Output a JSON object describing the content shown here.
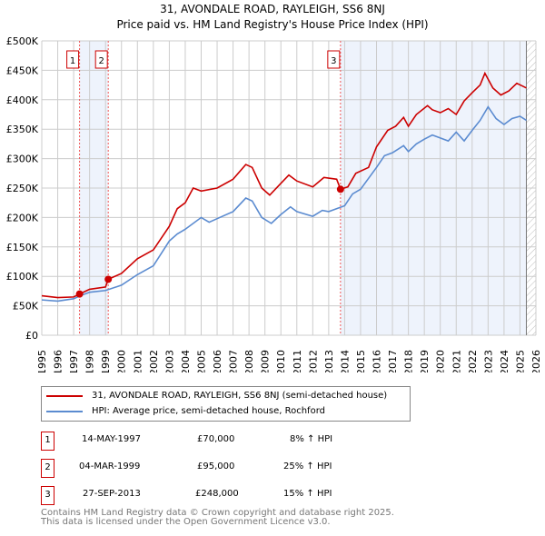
{
  "chart_data": {
    "type": "line",
    "title": "31, AVONDALE ROAD, RAYLEIGH, SS6 8NJ",
    "subtitle": "Price paid vs. HM Land Registry's House Price Index (HPI)",
    "xlim": [
      1995,
      2026
    ],
    "ylim": [
      0,
      500000
    ],
    "x_ticks": [
      "1995",
      "1996",
      "1997",
      "1998",
      "1999",
      "2000",
      "2001",
      "2002",
      "2003",
      "2004",
      "2005",
      "2006",
      "2007",
      "2008",
      "2009",
      "2010",
      "2011",
      "2012",
      "2013",
      "2014",
      "2015",
      "2016",
      "2017",
      "2018",
      "2019",
      "2020",
      "2021",
      "2022",
      "2023",
      "2024",
      "2025",
      "2026"
    ],
    "y_ticks": [
      {
        "v": 0,
        "label": "£0"
      },
      {
        "v": 50000,
        "label": "£50K"
      },
      {
        "v": 100000,
        "label": "£100K"
      },
      {
        "v": 150000,
        "label": "£150K"
      },
      {
        "v": 200000,
        "label": "£200K"
      },
      {
        "v": 250000,
        "label": "£250K"
      },
      {
        "v": 300000,
        "label": "£300K"
      },
      {
        "v": 350000,
        "label": "£350K"
      },
      {
        "v": 400000,
        "label": "£400K"
      },
      {
        "v": 450000,
        "label": "£450K"
      },
      {
        "v": 500000,
        "label": "£500K"
      }
    ],
    "grid": true,
    "series": [
      {
        "name": "31, AVONDALE ROAD, RAYLEIGH, SS6 8NJ (semi-detached house)",
        "color": "#cc0000",
        "x": [
          1995,
          1996,
          1997,
          1997.37,
          1998,
          1999,
          1999.17,
          2000,
          2001,
          2002,
          2003,
          2003.5,
          2004,
          2004.5,
          2005,
          2006,
          2007,
          2007.8,
          2008.2,
          2008.8,
          2009.3,
          2010,
          2010.5,
          2011,
          2012,
          2012.7,
          2013.5,
          2013.74,
          2014.2,
          2014.7,
          2015.5,
          2016,
          2016.7,
          2017.2,
          2017.7,
          2018,
          2018.5,
          2019.2,
          2019.5,
          2020,
          2020.5,
          2021,
          2021.5,
          2022,
          2022.5,
          2022.8,
          2023.3,
          2023.8,
          2024.3,
          2024.8,
          2025.4
        ],
        "y": [
          67000,
          64000,
          65000,
          70000,
          78000,
          82000,
          95000,
          105000,
          130000,
          145000,
          185000,
          215000,
          225000,
          250000,
          245000,
          250000,
          265000,
          290000,
          285000,
          250000,
          238000,
          258000,
          272000,
          262000,
          252000,
          268000,
          265000,
          248000,
          252000,
          275000,
          285000,
          320000,
          348000,
          355000,
          370000,
          355000,
          375000,
          390000,
          383000,
          378000,
          385000,
          375000,
          398000,
          412000,
          425000,
          445000,
          420000,
          408000,
          415000,
          428000,
          420000
        ]
      },
      {
        "name": "HPI: Average price, semi-detached house, Rochford",
        "color": "#5b8bd0",
        "x": [
          1995,
          1996,
          1997,
          1997.5,
          1998,
          1999,
          2000,
          2001,
          2002,
          2003,
          2003.5,
          2004,
          2005,
          2005.5,
          2006,
          2007,
          2007.8,
          2008.2,
          2008.8,
          2009.4,
          2010,
          2010.6,
          2011,
          2012,
          2012.6,
          2013,
          2014,
          2014.5,
          2015,
          2016,
          2016.5,
          2017,
          2017.7,
          2018,
          2018.5,
          2019,
          2019.5,
          2020,
          2020.5,
          2021,
          2021.5,
          2022,
          2022.5,
          2023,
          2023.5,
          2024,
          2024.5,
          2025,
          2025.4
        ],
        "y": [
          60000,
          58000,
          62000,
          68000,
          73000,
          76000,
          85000,
          103000,
          118000,
          160000,
          172000,
          180000,
          200000,
          192000,
          198000,
          210000,
          233000,
          228000,
          200000,
          190000,
          205000,
          218000,
          210000,
          202000,
          212000,
          210000,
          220000,
          240000,
          248000,
          285000,
          305000,
          310000,
          322000,
          312000,
          325000,
          333000,
          340000,
          335000,
          330000,
          345000,
          330000,
          348000,
          365000,
          388000,
          368000,
          358000,
          368000,
          372000,
          365000
        ]
      }
    ],
    "transactions": [
      {
        "id": "1",
        "x": 1997.37,
        "date": "14-MAY-1997",
        "price": "£70,000",
        "price_value": 70000,
        "hpi": "8% ↑ HPI"
      },
      {
        "id": "2",
        "x": 1999.17,
        "date": "04-MAR-1999",
        "price": "£95,000",
        "price_value": 95000,
        "hpi": "25% ↑ HPI"
      },
      {
        "id": "3",
        "x": 2013.74,
        "date": "27-SEP-2013",
        "price": "£248,000",
        "price_value": 248000,
        "hpi": "15% ↑ HPI"
      }
    ],
    "shaded_ranges": [
      [
        1997.37,
        1999.17
      ],
      [
        2013.74,
        2025.4
      ]
    ],
    "hatched_from": 2025.4
  },
  "footer": {
    "line1": "Contains HM Land Registry data © Crown copyright and database right 2025.",
    "line2": "This data is licensed under the Open Government Licence v3.0."
  }
}
